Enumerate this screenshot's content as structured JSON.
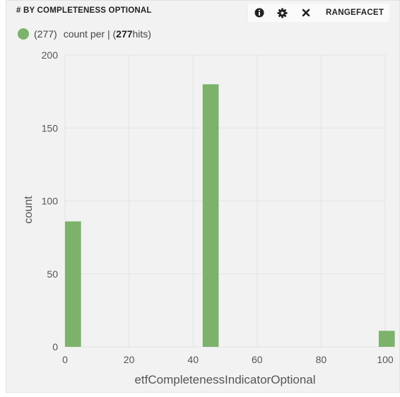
{
  "widget": {
    "title": "# BY COMPLETENESS OPTIONAL",
    "toolbar": {
      "info_icon": "info-icon",
      "settings_icon": "gear-icon",
      "close_icon": "close-icon",
      "label": "RANGEFACET"
    },
    "legend": {
      "count": "(277)",
      "label": "count per",
      "separator": "| (",
      "hits_value": "277",
      "hits_suffix": " hits)",
      "color": "#7cb26a"
    }
  },
  "chart_data": {
    "type": "bar",
    "xlabel": "etfCompletenessIndicatorOptional",
    "ylabel": "count",
    "xlim": [
      0,
      100
    ],
    "ylim": [
      0,
      200
    ],
    "x_ticks": [
      0,
      20,
      40,
      60,
      80,
      100
    ],
    "y_ticks": [
      0,
      50,
      100,
      150,
      200
    ],
    "bar_width": 5,
    "bars": [
      {
        "x": 0,
        "value": 86
      },
      {
        "x": 43,
        "value": 180
      },
      {
        "x": 98,
        "value": 11
      }
    ],
    "color": "#7cb26a",
    "grid": true
  }
}
